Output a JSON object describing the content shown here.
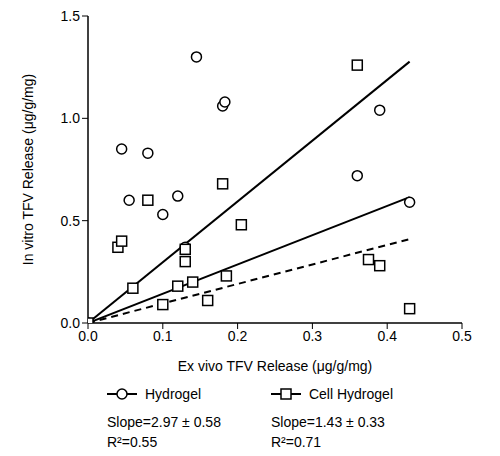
{
  "chart_data": {
    "type": "scatter",
    "x_label": "Ex vivo TFV Release (μg/g/mg)",
    "y_label": "In vitro TFV Release (μg/g/mg)",
    "xlim": [
      0,
      0.5
    ],
    "xticks": [
      {
        "value": 0,
        "label": "0.0"
      },
      0.1,
      0.2,
      0.3,
      0.4,
      0.5
    ],
    "ylim": [
      0,
      1.5
    ],
    "yticks": [
      {
        "value": 0,
        "label": "0.0"
      },
      0.5,
      {
        "value": 1,
        "label": "1.0"
      },
      1.5
    ],
    "grid": false,
    "series": [
      {
        "name": "Hydrogel",
        "type": "scatter",
        "marker": "circle",
        "color": "#000000",
        "x": [
          0,
          0.045,
          0.055,
          0.08,
          0.1,
          0.12,
          0.13,
          0.145,
          0.18,
          0.183,
          0.36,
          0.39,
          0.43
        ],
        "values": [
          0,
          0.85,
          0.6,
          0.83,
          0.53,
          0.62,
          0.37,
          1.3,
          1.06,
          1.08,
          0.72,
          1.04,
          0.59
        ],
        "fit_slope": 2.97,
        "line_style": "solid",
        "annotations": [
          "Slope=2.97 ± 0.58",
          "R²=0.55"
        ]
      },
      {
        "name": "Cell Hydrogel",
        "type": "scatter",
        "marker": "square",
        "color": "#000000",
        "x": [
          0,
          0.04,
          0.045,
          0.06,
          0.08,
          0.1,
          0.12,
          0.13,
          0.13,
          0.14,
          0.16,
          0.18,
          0.185,
          0.205,
          0.36,
          0.375,
          0.39,
          0.43
        ],
        "values": [
          0,
          0.37,
          0.4,
          0.17,
          0.6,
          0.09,
          0.18,
          0.3,
          0.36,
          0.2,
          0.11,
          0.68,
          0.23,
          0.48,
          1.26,
          0.31,
          0.28,
          0.07
        ],
        "fit_slope": 1.43,
        "line_style": "solid",
        "annotations": [
          "Slope=1.43 ± 0.33",
          "R²=0.71"
        ]
      },
      {
        "type": "line",
        "line_style": "dashed",
        "color": "#000000",
        "x": [
          0,
          0.43
        ],
        "values": [
          0,
          0.41
        ]
      }
    ]
  }
}
